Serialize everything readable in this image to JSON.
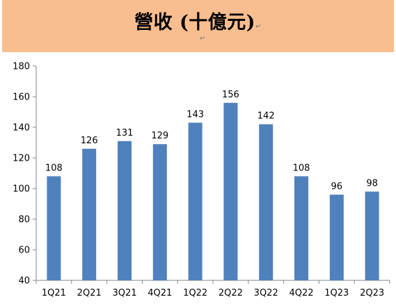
{
  "title": "營收 (十億元)",
  "paragraph_mark": "↵",
  "chart_data": {
    "type": "bar",
    "categories": [
      "1Q21",
      "2Q21",
      "3Q21",
      "4Q21",
      "1Q22",
      "2Q22",
      "3Q22",
      "4Q22",
      "1Q23",
      "2Q23"
    ],
    "values": [
      108,
      126,
      131,
      129,
      143,
      156,
      142,
      108,
      96,
      98
    ],
    "title": "營收 (十億元)",
    "ylim": [
      40,
      180
    ],
    "yticks": [
      40,
      60,
      80,
      100,
      120,
      140,
      160,
      180
    ],
    "grid": false,
    "legend": "none",
    "bar_color": "#4f81bd",
    "axis_color": "#868686"
  }
}
